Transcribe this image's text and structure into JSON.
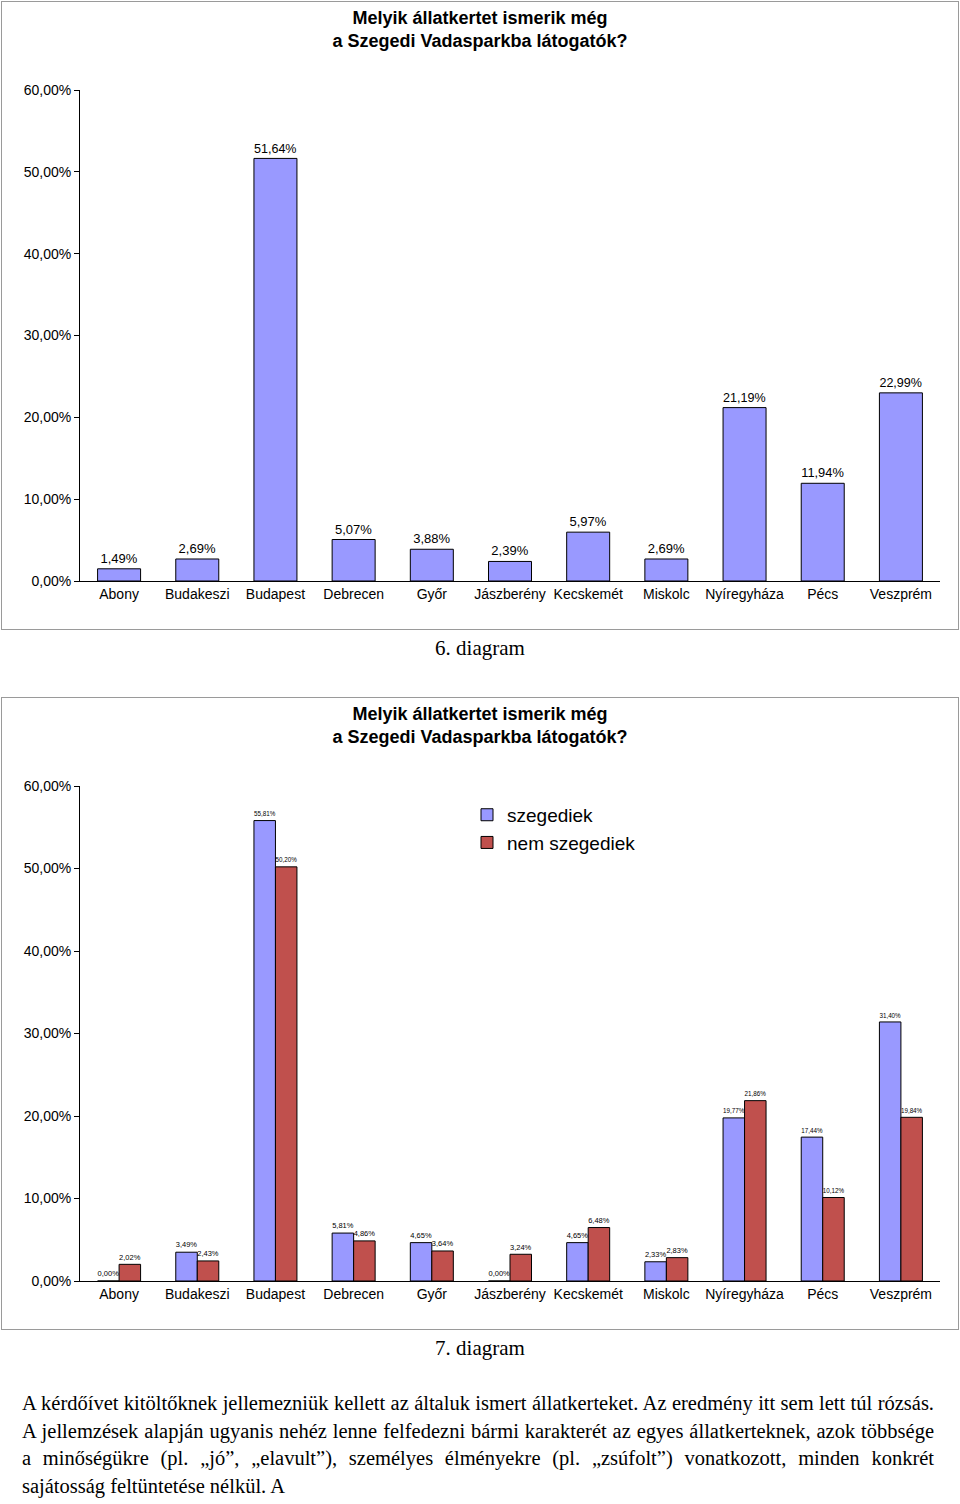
{
  "chart_data": [
    {
      "type": "bar",
      "title": "Melyik állatkertet ismerik még\na Szegedi Vadasparkba látogatók?",
      "caption": "6. diagram",
      "categories": [
        "Abony",
        "Budakeszi",
        "Budapest",
        "Debrecen",
        "Győr",
        "Jászberény",
        "Kecskemét",
        "Miskolc",
        "Nyíregyháza",
        "Pécs",
        "Veszprém"
      ],
      "values": [
        1.49,
        2.69,
        51.64,
        5.07,
        3.88,
        2.39,
        5.97,
        2.69,
        21.19,
        11.94,
        22.99
      ],
      "value_labels": [
        "1,49%",
        "2,69%",
        "51,64%",
        "5,07%",
        "3,88%",
        "2,39%",
        "5,97%",
        "2,69%",
        "21,19%",
        "11,94%",
        "22,99%"
      ],
      "color": "#9999ff",
      "ylim": [
        0,
        60
      ],
      "yticks": [
        {
          "value": 0,
          "label": "0,00%"
        },
        {
          "value": 10,
          "label": "10,00%"
        },
        {
          "value": 20,
          "label": "20,00%"
        },
        {
          "value": 30,
          "label": "30,00%"
        },
        {
          "value": 40,
          "label": "40,00%"
        },
        {
          "value": 50,
          "label": "50,00%"
        },
        {
          "value": 60,
          "label": "60,00%"
        }
      ],
      "grid": false,
      "data_labels": true
    },
    {
      "type": "bar",
      "title": "Melyik állatkertet ismerik még\na Szegedi Vadasparkba látogatók?",
      "caption": "7. diagram",
      "categories": [
        "Abony",
        "Budakeszi",
        "Budapest",
        "Debrecen",
        "Győr",
        "Jászberény",
        "Kecskemét",
        "Miskolc",
        "Nyíregyháza",
        "Pécs",
        "Veszprém"
      ],
      "series": [
        {
          "name": "szegediek",
          "color": "#9999ff",
          "values": [
            0.0,
            3.49,
            55.81,
            5.81,
            4.65,
            0.0,
            4.65,
            2.33,
            19.77,
            17.44,
            31.4
          ],
          "value_labels": [
            "0,00%",
            "3,49%",
            "55,81%",
            "5,81%",
            "4,65%",
            "0,00%",
            "4,65%",
            "2,33%",
            "19,77%",
            "17,44%",
            "31,40%"
          ]
        },
        {
          "name": "nem szegediek",
          "color": "#c0504d",
          "values": [
            2.02,
            2.43,
            50.2,
            4.86,
            3.64,
            3.24,
            6.48,
            2.83,
            21.86,
            10.12,
            19.84
          ],
          "value_labels": [
            "2,02%",
            "2,43%",
            "50,20%",
            "4,86%",
            "3,64%",
            "3,24%",
            "6,48%",
            "2,83%",
            "21,86%",
            "10,12%",
            "19,84%"
          ]
        }
      ],
      "ylim": [
        0,
        60
      ],
      "yticks": [
        {
          "value": 0,
          "label": "0,00%"
        },
        {
          "value": 10,
          "label": "10,00%"
        },
        {
          "value": 20,
          "label": "20,00%"
        },
        {
          "value": 30,
          "label": "30,00%"
        },
        {
          "value": 40,
          "label": "40,00%"
        },
        {
          "value": 50,
          "label": "50,00%"
        },
        {
          "value": 60,
          "label": "60,00%"
        }
      ],
      "grid": false,
      "legend": "top",
      "data_labels": true
    }
  ],
  "text": {
    "paragraph": "A kérdőívet kitöltőknek jellemezniük kellett az általuk ismert állatkerteket. Az eredmény itt sem lett túl rózsás. A jellemzések alapján ugyanis nehéz lenne felfedezni bármi karakterét az egyes állatkerteknek, azok többsége a minőségükre (pl. „jó”, „elavult”), személyes élményekre (pl. „zsúfolt”) vonatkozott, minden konkrét sajátosság feltüntetése nélkül. A"
  }
}
